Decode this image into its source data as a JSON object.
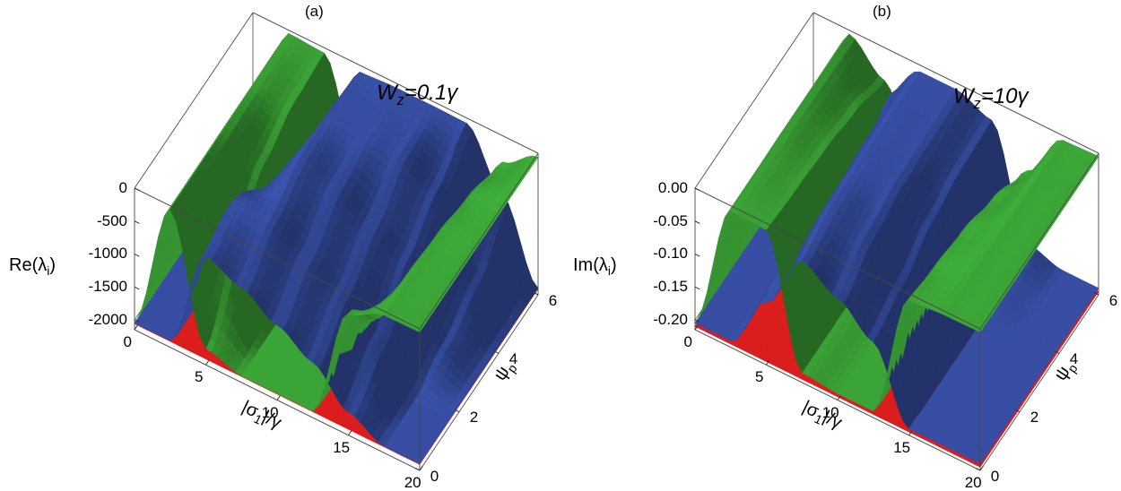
{
  "figure": {
    "background": "#ffffff",
    "description": "Two 3D surface plots of eigenvalue real and imaginary parts versus |sigma_1|/gamma and psi_p"
  },
  "chart_data": [
    {
      "type": "3d-surface",
      "title": "(a)",
      "annotation": {
        "var": "W",
        "sub": "z",
        "rest": "=0.1γ"
      },
      "z_axis": {
        "label_main": "Re(λ",
        "label_sub": "i",
        "label_suffix": ")",
        "tick_labels": [
          "0",
          "-500",
          "-1000",
          "-1500",
          "-2000"
        ],
        "tick_values": [
          0,
          -500,
          -1000,
          -1500,
          -2000
        ],
        "plot_range": [
          -2150,
          0
        ]
      },
      "x_axis": {
        "label_prefix": "|σ",
        "label_sub": "1",
        "label_suffix": "|/γ",
        "tick_labels": [
          "0",
          "5",
          "10",
          "15",
          "20"
        ],
        "tick_values": [
          0,
          5,
          10,
          15,
          20
        ],
        "range": [
          0,
          20
        ]
      },
      "y_axis": {
        "label_main": "ψ",
        "label_sub": "p",
        "tick_labels": [
          "0",
          "2",
          "4",
          "6"
        ],
        "tick_values": [
          0,
          2,
          4,
          6
        ],
        "range": [
          0,
          6
        ]
      },
      "surfaces": [
        {
          "name": "red-floor-eigenvalue",
          "color": "#e81f1f",
          "type": "const",
          "value": -2060
        },
        {
          "name": "green-eigenvalue-sheet",
          "color": "#3fae3a",
          "type": "grid",
          "x_nodes": [
            0,
            2.5,
            5,
            7.5,
            10,
            12.5,
            15,
            17.5,
            20
          ],
          "y_nodes": [
            0,
            1.5,
            3,
            4.5,
            6
          ],
          "values": [
            [
              -2000,
              -60,
              -1900,
              -2050,
              -2050,
              -2050,
              -300,
              -60,
              -50
            ],
            [
              -2000,
              -60,
              -1000,
              -2050,
              -2050,
              -2050,
              -1000,
              -70,
              -50
            ],
            [
              -2000,
              -55,
              -400,
              -2050,
              -2050,
              -2050,
              -1500,
              -100,
              -50
            ],
            [
              -2000,
              -55,
              -150,
              -1900,
              -2050,
              -2050,
              -1900,
              -200,
              -50
            ],
            [
              -2000,
              -50,
              -80,
              -1600,
              -2050,
              -2050,
              -2000,
              -400,
              -60
            ]
          ]
        },
        {
          "name": "blue-eigenvalue-sheet",
          "color": "#3a53ad",
          "type": "grid",
          "x_nodes": [
            0,
            2.5,
            5,
            7.5,
            10,
            12.5,
            15,
            17.5,
            20
          ],
          "y_nodes": [
            0,
            1.5,
            3,
            4.5,
            6
          ],
          "values": [
            [
              -2050,
              -2050,
              -500,
              -710,
              -1010,
              -1310,
              -1800,
              -2050,
              -2050
            ],
            [
              -2050,
              -2050,
              -300,
              -320,
              -620,
              -915,
              -1400,
              -2050,
              -2050
            ],
            [
              -2050,
              -2050,
              -700,
              -60,
              -230,
              -520,
              -820,
              -1800,
              -2050
            ],
            [
              -2050,
              -2050,
              -1500,
              -70,
              -80,
              -130,
              -430,
              -1500,
              -2050
            ],
            [
              -2050,
              -2050,
              -1800,
              -100,
              -70,
              -70,
              -80,
              -900,
              -2050
            ]
          ]
        }
      ]
    },
    {
      "type": "3d-surface",
      "title": "(b)",
      "annotation": {
        "var": "W",
        "sub": "z",
        "rest": "=10γ"
      },
      "z_axis": {
        "label_main": "Im(λ",
        "label_sub": "i",
        "label_suffix": ")",
        "tick_labels": [
          "0.00",
          "-0.05",
          "-0.10",
          "-0.15",
          "-0.20"
        ],
        "tick_values": [
          0,
          -0.05,
          -0.1,
          -0.15,
          -0.2
        ],
        "plot_range": [
          -0.215,
          0
        ]
      },
      "x_axis": {
        "label_prefix": "|σ",
        "label_sub": "1",
        "label_suffix": "|/γ",
        "tick_labels": [
          "0",
          "5",
          "10",
          "15",
          "20"
        ],
        "tick_values": [
          0,
          5,
          10,
          15,
          20
        ],
        "range": [
          0,
          20
        ]
      },
      "y_axis": {
        "label_main": "ψ",
        "label_sub": "p",
        "tick_labels": [
          "0",
          "2",
          "4",
          "6"
        ],
        "tick_values": [
          0,
          2,
          4,
          6
        ],
        "range": [
          0,
          6
        ]
      },
      "surfaces": [
        {
          "name": "red-floor-eigenvalue",
          "color": "#e81f1f",
          "type": "const",
          "value": -0.21
        },
        {
          "name": "green-eigenvalue-sheet",
          "color": "#3fae3a",
          "type": "grid",
          "x_nodes": [
            0,
            2.5,
            5,
            7.5,
            10,
            12.5,
            15,
            17.5,
            20
          ],
          "y_nodes": [
            0,
            1.5,
            3,
            4.5,
            6
          ],
          "values": [
            [
              -0.2,
              -0.008,
              -0.01,
              -0.2,
              -0.205,
              -0.205,
              -0.01,
              -0.006,
              -0.005
            ],
            [
              -0.2,
              -0.008,
              -0.015,
              -0.2,
              -0.205,
              -0.205,
              -0.02,
              -0.006,
              -0.005
            ],
            [
              -0.2,
              -0.007,
              -0.02,
              -0.2,
              -0.205,
              -0.205,
              -0.03,
              -0.006,
              -0.005
            ],
            [
              -0.2,
              -0.007,
              -0.03,
              -0.19,
              -0.205,
              -0.205,
              -0.05,
              -0.006,
              -0.005
            ],
            [
              -0.2,
              -0.006,
              -0.05,
              -0.18,
              -0.205,
              -0.205,
              -0.08,
              -0.007,
              -0.005
            ]
          ]
        },
        {
          "name": "blue-eigenvalue-sheet",
          "color": "#3a53ad",
          "type": "grid",
          "x_nodes": [
            0,
            2.5,
            5,
            7.5,
            10,
            12.5,
            15,
            17.5,
            20
          ],
          "y_nodes": [
            0,
            1.5,
            3,
            4.5,
            6
          ],
          "values": [
            [
              -0.205,
              -0.205,
              -0.12,
              -0.03,
              -0.06,
              -0.1,
              -0.205,
              -0.205,
              -0.205
            ],
            [
              -0.205,
              -0.205,
              -0.1,
              -0.015,
              -0.029,
              -0.08,
              -0.205,
              -0.205,
              -0.205
            ],
            [
              -0.205,
              -0.205,
              -0.09,
              -0.012,
              -0.015,
              -0.05,
              -0.205,
              -0.205,
              -0.205
            ],
            [
              -0.205,
              -0.205,
              -0.08,
              -0.01,
              -0.012,
              -0.035,
              -0.2,
              -0.205,
              -0.205
            ],
            [
              -0.205,
              -0.205,
              -0.07,
              -0.01,
              -0.01,
              -0.03,
              -0.19,
              -0.205,
              -0.205
            ]
          ]
        }
      ]
    }
  ]
}
